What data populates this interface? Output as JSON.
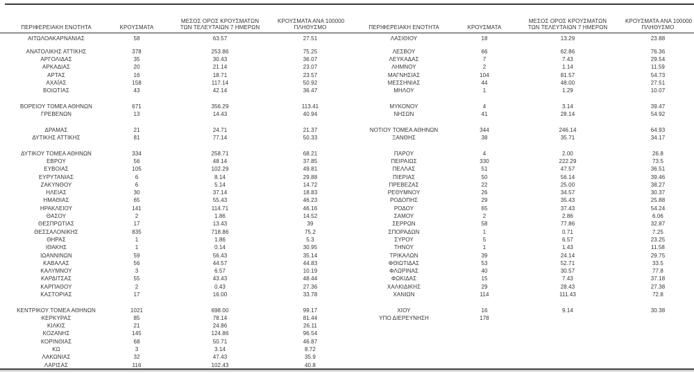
{
  "page": {
    "background": "#ffffff",
    "text_color": "#333333",
    "rule_color": "#3a3a3a"
  },
  "columns": {
    "region": "ΠΕΡΙΦΕΡΕΙΑΚΗ ΕΝΟΤΗΤΑ",
    "cases": "ΚΡΟΥΣΜΑΤΑ",
    "avg7_line1": "ΜΕΣΟΣ ΟΡΟΣ ΚΡΟΥΣΜΑΤΩΝ",
    "avg7_line2": "ΤΩΝ ΤΕΛΕΥΤΑΙΩΝ 7 ΗΜΕΡΩΝ",
    "per100k_line1": "ΚΡΟΥΣΜΑΤΑ ΑΝΑ 100000",
    "per100k_line2": "ΠΛΗΘΥΣΜΟ"
  },
  "left_table": {
    "groups": [
      [
        [
          "ΑΙΤΩΛΟΑΚΑΡΝΑΝΙΑΣ",
          "58",
          "63.57",
          "27.51"
        ]
      ],
      [
        [
          "ΑΝΑΤΟΛΙΚΗΣ ΑΤΤΙΚΗΣ",
          "378",
          "253.86",
          "75.25"
        ],
        [
          "ΑΡΓΟΛΙΔΑΣ",
          "35",
          "30.43",
          "36.07"
        ],
        [
          "ΑΡΚΑΔΙΑΣ",
          "20",
          "21.14",
          "23.07"
        ],
        [
          "ΑΡΤΑΣ",
          "16",
          "18.71",
          "23.57"
        ],
        [
          "ΑΧΑΪΑΣ",
          "158",
          "117.14",
          "50.92"
        ],
        [
          "ΒΟΙΩΤΙΑΣ",
          "43",
          "42.14",
          "36.47"
        ]
      ],
      [
        [
          "ΒΟΡΕΙΟΥ ΤΟΜΕΑ ΑΘΗΝΩΝ",
          "671",
          "356.29",
          "113.41"
        ],
        [
          "ΓΡΕΒΕΝΩΝ",
          "13",
          "14.43",
          "40.94"
        ]
      ],
      [
        [
          "ΔΡΑΜΑΣ",
          "21",
          "24.71",
          "21.37"
        ],
        [
          "ΔΥΤΙΚΗΣ ΑΤΤΙΚΗΣ",
          "81",
          "77.14",
          "50.33"
        ]
      ],
      [
        [
          "ΔΥΤΙΚΟΥ ΤΟΜΕΑ ΑΘΗΝΩΝ",
          "334",
          "258.71",
          "68.21"
        ],
        [
          "ΕΒΡΟΥ",
          "56",
          "48.14",
          "37.85"
        ],
        [
          "ΕΥΒΟΙΑΣ",
          "105",
          "102.29",
          "49.81"
        ],
        [
          "ΕΥΡΥΤΑΝΙΑΣ",
          "6",
          "8.14",
          "29.88"
        ],
        [
          "ΖΑΚΥΝΘΟΥ",
          "6",
          "5.14",
          "14.72"
        ],
        [
          "ΗΛΕΙΑΣ",
          "30",
          "37.14",
          "18.83"
        ],
        [
          "ΗΜΑΘΙΑΣ",
          "65",
          "55.43",
          "46.23"
        ],
        [
          "ΗΡΑΚΛΕΙΟΥ",
          "141",
          "114.71",
          "46.16"
        ],
        [
          "ΘΑΣΟΥ",
          "2",
          "1.86",
          "14.52"
        ],
        [
          "ΘΕΣΠΡΩΤΙΑΣ",
          "17",
          "13.43",
          "39"
        ],
        [
          "ΘΕΣΣΑΛΟΝΙΚΗΣ",
          "835",
          "718.86",
          "75.2"
        ],
        [
          "ΘΗΡΑΣ",
          "1",
          "1.86",
          "5.3"
        ],
        [
          "ΙΘΑΚΗΣ",
          "1",
          "0.14",
          "30.95"
        ],
        [
          "ΙΩΑΝΝΙΝΩΝ",
          "59",
          "56.43",
          "35.14"
        ],
        [
          "ΚΑΒΑΛΑΣ",
          "56",
          "44.57",
          "44.83"
        ],
        [
          "ΚΑΛΥΜΝΟΥ",
          "3",
          "6.57",
          "10.19"
        ],
        [
          "ΚΑΡΔΙΤΣΑΣ",
          "55",
          "43.43",
          "48.44"
        ],
        [
          "ΚΑΡΠΑΘΟΥ",
          "2",
          "0.43",
          "27.36"
        ],
        [
          "ΚΑΣΤΟΡΙΑΣ",
          "17",
          "16.00",
          "33.78"
        ]
      ],
      [
        [
          "ΚΕΝΤΡΙΚΟΥ ΤΟΜΕΑ ΑΘΗΝΩΝ",
          "1021",
          "698.00",
          "99.17"
        ],
        [
          "ΚΕΡΚΥΡΑΣ",
          "85",
          "78.14",
          "81.44"
        ],
        [
          "ΚΙΛΚΙΣ",
          "21",
          "24.86",
          "26.11"
        ],
        [
          "ΚΟΖΑΝΗΣ",
          "145",
          "124.86",
          "96.54"
        ],
        [
          "ΚΟΡΙΝΘΙΑΣ",
          "68",
          "50.71",
          "46.87"
        ],
        [
          "ΚΩ",
          "3",
          "3.14",
          "8.72"
        ],
        [
          "ΛΑΚΩΝΙΑΣ",
          "32",
          "47.43",
          "35.9"
        ],
        [
          "ΛΑΡΙΣΑΣ",
          "116",
          "102.43",
          "40.8"
        ]
      ]
    ]
  },
  "right_table": {
    "groups": [
      [
        [
          "ΛΑΣΙΘΙΟΥ",
          "18",
          "13.29",
          "23.88"
        ]
      ],
      [
        [
          "ΛΕΣΒΟΥ",
          "66",
          "62.86",
          "76.36"
        ],
        [
          "ΛΕΥΚΑΔΑΣ",
          "7",
          "7.43",
          "29.54"
        ],
        [
          "ΛΗΜΝΟΥ",
          "2",
          "1.14",
          "11.59"
        ],
        [
          "ΜΑΓΝΗΣΙΑΣ",
          "104",
          "81.57",
          "54.73"
        ],
        [
          "ΜΕΣΣΗΝΙΑΣ",
          "44",
          "48.00",
          "27.51"
        ],
        [
          "ΜΗΛΟΥ",
          "1",
          "1.29",
          "10.07"
        ]
      ],
      [
        [
          "ΜΥΚΟΝΟΥ",
          "4",
          "3.14",
          "39.47"
        ],
        [
          "ΝΗΣΩΝ",
          "41",
          "28.14",
          "54.92"
        ]
      ],
      [
        [
          "ΝΟΤΙΟΥ ΤΟΜΕΑ ΑΘΗΝΩΝ",
          "344",
          "246.14",
          "64.93"
        ],
        [
          "ΞΑΝΘΗΣ",
          "38",
          "35.71",
          "34.17"
        ]
      ],
      [
        [
          "ΠΑΡΟΥ",
          "4",
          "2.00",
          "26.8"
        ],
        [
          "ΠΕΙΡΑΙΩΣ",
          "330",
          "222.29",
          "73.5"
        ],
        [
          "ΠΕΛΛΑΣ",
          "51",
          "47.57",
          "36.51"
        ],
        [
          "ΠΙΕΡΙΑΣ",
          "50",
          "56.14",
          "39.46"
        ],
        [
          "ΠΡΕΒΕΖΑΣ",
          "22",
          "25.00",
          "38.27"
        ],
        [
          "ΡΕΘΥΜΝΟΥ",
          "26",
          "34.57",
          "30.37"
        ],
        [
          "ΡΟΔΟΠΗΣ",
          "29",
          "35.43",
          "25.88"
        ],
        [
          "ΡΟΔΟΥ",
          "65",
          "37.43",
          "54.24"
        ],
        [
          "ΣΑΜΟΥ",
          "2",
          "2.86",
          "6.06"
        ],
        [
          "ΣΕΡΡΩΝ",
          "58",
          "77.86",
          "32.87"
        ],
        [
          "ΣΠΟΡΑΔΩΝ",
          "1",
          "0.71",
          "7.25"
        ],
        [
          "ΣΥΡΟΥ",
          "5",
          "6.57",
          "23.25"
        ],
        [
          "ΤΗΝΟΥ",
          "1",
          "1.43",
          "11.58"
        ],
        [
          "ΤΡΙΚΑΛΩΝ",
          "39",
          "24.14",
          "29.75"
        ],
        [
          "ΦΘΙΩΤΙΔΑΣ",
          "53",
          "52.71",
          "33.5"
        ],
        [
          "ΦΛΩΡΙΝΑΣ",
          "40",
          "30.57",
          "77.8"
        ],
        [
          "ΦΩΚΙΔΑΣ",
          "15",
          "7.43",
          "37.18"
        ],
        [
          "ΧΑΛΚΙΔΙΚΗΣ",
          "29",
          "28.43",
          "27.38"
        ],
        [
          "ΧΑΝΙΩΝ",
          "114",
          "111.43",
          "72.8"
        ]
      ],
      [
        [
          "ΧΙΟΥ",
          "16",
          "9.14",
          "30.38"
        ],
        [
          "ΥΠΟ ΔΙΕΡΕΥΝΗΣΗ",
          "178",
          "",
          ""
        ]
      ]
    ]
  }
}
